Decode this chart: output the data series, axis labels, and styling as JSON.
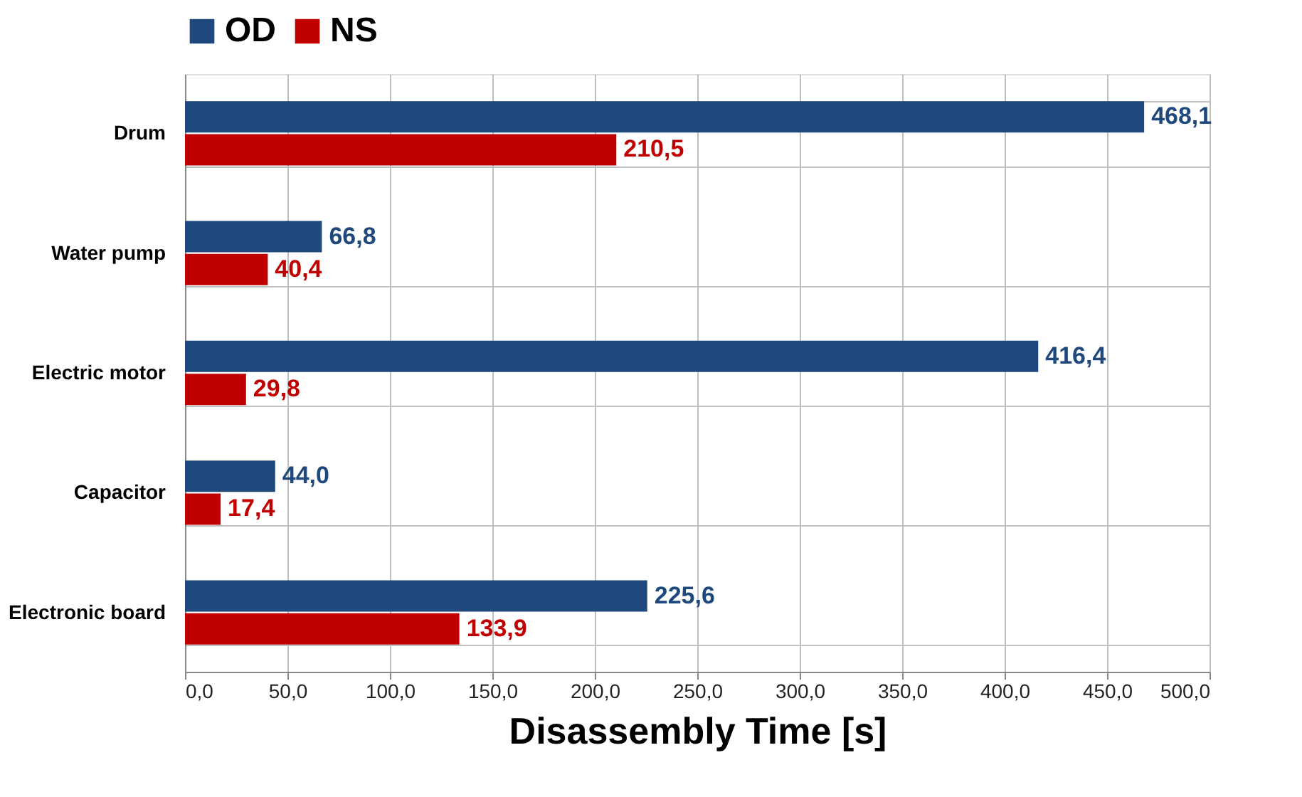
{
  "chart_data": {
    "type": "bar",
    "orientation": "horizontal",
    "xlabel": "Disassembly Time [s]",
    "categories": [
      "Drum",
      "Water pump",
      "Electric motor",
      "Capacitor",
      "Electronic board"
    ],
    "series": [
      {
        "name": "OD",
        "color": "#1f497d",
        "values": [
          468.1,
          66.8,
          416.4,
          44.0,
          225.6
        ],
        "value_labels": [
          "468,1",
          "66,8",
          "416,4",
          "44,0",
          "225,6"
        ]
      },
      {
        "name": "NS",
        "color": "#c00000",
        "values": [
          210.5,
          40.4,
          29.8,
          17.4,
          133.9
        ],
        "value_labels": [
          "210,5",
          "40,4",
          "29,8",
          "17,4",
          "133,9"
        ]
      }
    ],
    "xlim": [
      0,
      500
    ],
    "xticks": [
      {
        "value": 0,
        "label": "0,0"
      },
      {
        "value": 50,
        "label": "50,0"
      },
      {
        "value": 100,
        "label": "100,0"
      },
      {
        "value": 150,
        "label": "150,0"
      },
      {
        "value": 200,
        "label": "200,0"
      },
      {
        "value": 250,
        "label": "250,0"
      },
      {
        "value": 300,
        "label": "300,0"
      },
      {
        "value": 350,
        "label": "350,0"
      },
      {
        "value": 400,
        "label": "400,0"
      },
      {
        "value": 450,
        "label": "450,0"
      },
      {
        "value": 500,
        "label": "500,0"
      }
    ],
    "grid": true,
    "legend": "top"
  }
}
